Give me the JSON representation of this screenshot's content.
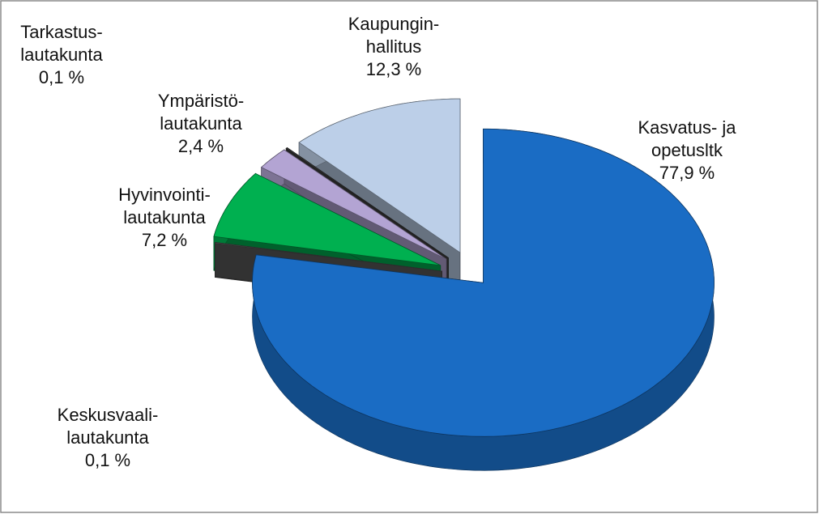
{
  "chart_data": {
    "type": "pie3d",
    "categories": [
      [
        "Kasvatus- ja",
        "opetusltk"
      ],
      [
        "Keskusvaali-",
        "lautakunta"
      ],
      [
        "Hyvinvointi-",
        "lautakunta"
      ],
      [
        "Ympäristö-",
        "lautakunta"
      ],
      [
        "Tarkastus-",
        "lautakunta"
      ],
      [
        "Kaupungin-",
        "hallitus"
      ]
    ],
    "values": [
      77.9,
      0.1,
      7.2,
      2.4,
      0.1,
      12.3
    ],
    "value_labels": [
      "77,9 %",
      "0,1 %",
      "7,2 %",
      "2,4 %",
      "0,1 %",
      "12,3 %"
    ],
    "colors": [
      "#1a6cc4",
      "#5a5a5a",
      "#00b050",
      "#b3a4d3",
      "#404040",
      "#bccfe8"
    ]
  }
}
